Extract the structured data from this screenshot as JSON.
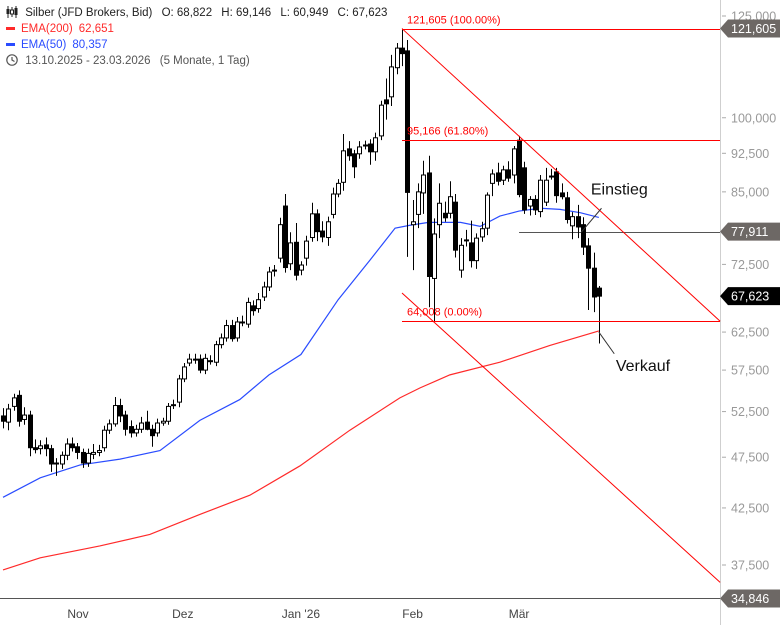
{
  "header": {
    "instrument": "Silber (JFD Brokers, Bid)",
    "open": "O: 68,822",
    "high": "H: 69,146",
    "low": "L: 60,949",
    "close": "C: 67,623",
    "ema200_label": "EMA(200)",
    "ema200_value": "62,651",
    "ema50_label": "EMA(50)",
    "ema50_value": "80,357",
    "range": "13.10.2025 - 23.03.2026",
    "period": "(5 Monate, 1 Tag)",
    "icons": [
      "candlestick-icon",
      "clock-icon"
    ]
  },
  "colors": {
    "up_fill": "#ffffff",
    "candle": "#000000",
    "ema200": "#ff2a2a",
    "ema50": "#2a4cff",
    "annotation": "#ff0000",
    "guide": "#555555",
    "tag": "#6d6865",
    "tag_current": "#000000",
    "axis_text": "#999999"
  },
  "chart_data": {
    "type": "candlestick",
    "title": "Silber (JFD Brokers, Bid)",
    "yscale": "log",
    "ylim": [
      34.2,
      127
    ],
    "y_ticks": [
      {
        "v": 125,
        "label": "125,000"
      },
      {
        "v": 100,
        "label": "100,000"
      },
      {
        "v": 92.5,
        "label": "92,500"
      },
      {
        "v": 85,
        "label": "85,000"
      },
      {
        "v": 72.5,
        "label": "72,500"
      },
      {
        "v": 62.5,
        "label": "62,500"
      },
      {
        "v": 57.5,
        "label": "57,500"
      },
      {
        "v": 52.5,
        "label": "52,500"
      },
      {
        "v": 47.5,
        "label": "47,500"
      },
      {
        "v": 42.5,
        "label": "42,500"
      },
      {
        "v": 37.5,
        "label": "37,500"
      }
    ],
    "x_ticks": [
      {
        "i": 14.1,
        "label": "Nov"
      },
      {
        "i": 33.8,
        "label": "Dez"
      },
      {
        "i": 56,
        "label": "Jan '26"
      },
      {
        "i": 77,
        "label": "Feb"
      },
      {
        "i": 97,
        "label": "Mär"
      }
    ],
    "price_tags": [
      {
        "v": 121.605,
        "label": "121,605",
        "current": false
      },
      {
        "v": 77.911,
        "label": "77,911",
        "current": false
      },
      {
        "v": 67.623,
        "label": "67,623",
        "current": true
      },
      {
        "v": 34.846,
        "label": "34,846",
        "current": false
      }
    ],
    "ohlc": [
      [
        52.0,
        52.9,
        50.6,
        51.4
      ],
      [
        51.3,
        53.4,
        50.4,
        52.8
      ],
      [
        53.1,
        54.6,
        52.6,
        54.1
      ],
      [
        54.4,
        55.0,
        50.8,
        51.4
      ],
      [
        51.6,
        53.0,
        51.0,
        52.1
      ],
      [
        52.1,
        52.6,
        47.6,
        48.5
      ],
      [
        48.5,
        49.4,
        47.9,
        48.3
      ],
      [
        48.4,
        49.3,
        47.8,
        48.7
      ],
      [
        48.8,
        49.6,
        47.6,
        48.4
      ],
      [
        48.4,
        48.8,
        46.0,
        46.8
      ],
      [
        46.8,
        47.4,
        45.6,
        46.9
      ],
      [
        46.8,
        48.1,
        46.3,
        47.7
      ],
      [
        47.7,
        49.5,
        47.2,
        48.9
      ],
      [
        48.9,
        49.6,
        48.1,
        48.5
      ],
      [
        48.6,
        49.0,
        47.3,
        48.0
      ],
      [
        48.0,
        48.4,
        46.4,
        46.9
      ],
      [
        46.9,
        48.4,
        46.5,
        47.9
      ],
      [
        47.8,
        48.9,
        47.3,
        48.0
      ],
      [
        48.0,
        48.8,
        47.6,
        48.2
      ],
      [
        48.5,
        50.9,
        48.1,
        50.4
      ],
      [
        50.4,
        51.6,
        50.0,
        51.1
      ],
      [
        51.1,
        54.2,
        50.8,
        53.2
      ],
      [
        53.2,
        54.0,
        51.3,
        52.0
      ],
      [
        52.1,
        52.6,
        49.8,
        50.5
      ],
      [
        50.8,
        51.5,
        49.6,
        50.1
      ],
      [
        50.1,
        51.0,
        49.7,
        50.5
      ],
      [
        50.5,
        51.9,
        50.1,
        51.2
      ],
      [
        51.3,
        52.6,
        50.4,
        50.5
      ],
      [
        50.5,
        51.0,
        48.6,
        49.8
      ],
      [
        50.1,
        51.7,
        49.7,
        51.2
      ],
      [
        51.2,
        51.8,
        50.9,
        51.4
      ],
      [
        51.4,
        53.5,
        51.0,
        53.1
      ],
      [
        53.3,
        53.9,
        52.8,
        53.3
      ],
      [
        53.6,
        56.9,
        53.0,
        56.4
      ],
      [
        56.4,
        58.4,
        56.0,
        57.9
      ],
      [
        58.4,
        59.6,
        58.0,
        58.9
      ],
      [
        58.9,
        59.6,
        58.3,
        58.9
      ],
      [
        58.9,
        59.5,
        57.1,
        57.5
      ],
      [
        57.5,
        59.6,
        57.0,
        59.0
      ],
      [
        58.7,
        59.4,
        58.2,
        58.7
      ],
      [
        58.5,
        61.3,
        58.0,
        60.8
      ],
      [
        60.8,
        62.3,
        60.3,
        61.7
      ],
      [
        61.7,
        64.2,
        61.2,
        63.4
      ],
      [
        63.4,
        64.2,
        61.2,
        61.6
      ],
      [
        61.7,
        64.6,
        61.2,
        63.9
      ],
      [
        63.9,
        64.8,
        63.3,
        63.9
      ],
      [
        63.6,
        67.4,
        63.1,
        66.7
      ],
      [
        66.2,
        67.0,
        64.8,
        65.5
      ],
      [
        65.8,
        68.1,
        65.2,
        67.1
      ],
      [
        67.5,
        69.8,
        66.9,
        69.0
      ],
      [
        69.0,
        72.1,
        68.4,
        71.3
      ],
      [
        71.6,
        72.4,
        70.6,
        71.6
      ],
      [
        73.5,
        80.3,
        72.8,
        79.1
      ],
      [
        82.4,
        84.6,
        71.2,
        72.0
      ],
      [
        72.6,
        77.8,
        71.6,
        76.0
      ],
      [
        76.1,
        79.4,
        70.0,
        70.8
      ],
      [
        71.6,
        73.0,
        70.8,
        72.4
      ],
      [
        73.5,
        77.2,
        72.3,
        76.3
      ],
      [
        76.9,
        83.0,
        76.2,
        81.0
      ],
      [
        81.0,
        81.8,
        76.3,
        77.9
      ],
      [
        78.0,
        79.7,
        76.1,
        77.0
      ],
      [
        76.9,
        80.5,
        75.5,
        79.6
      ],
      [
        80.9,
        85.8,
        80.2,
        84.6
      ],
      [
        84.6,
        87.4,
        84.0,
        86.6
      ],
      [
        86.8,
        96.5,
        85.2,
        93.0
      ],
      [
        93.4,
        95.0,
        91.0,
        92.0
      ],
      [
        92.4,
        93.2,
        87.6,
        89.8
      ],
      [
        92.4,
        95.0,
        91.4,
        93.8
      ],
      [
        94.2,
        95.1,
        93.3,
        94.2
      ],
      [
        94.4,
        95.4,
        90.2,
        92.8
      ],
      [
        92.8,
        96.8,
        91.0,
        95.7
      ],
      [
        96.1,
        103.8,
        95.2,
        102.8
      ],
      [
        104.0,
        109.0,
        99.6,
        103.1
      ],
      [
        104.7,
        114.8,
        102.6,
        111.8
      ],
      [
        111.6,
        117.8,
        110.0,
        116.5
      ],
      [
        116.5,
        121.605,
        112.0,
        115.1
      ],
      [
        115.8,
        118.6,
        73.7,
        84.9
      ],
      [
        79.1,
        83.5,
        71.6,
        79.6
      ],
      [
        80.9,
        86.6,
        78.5,
        85.0
      ],
      [
        84.8,
        91.0,
        81.0,
        88.2
      ],
      [
        88.6,
        92.0,
        66.0,
        70.6
      ],
      [
        70.3,
        80.2,
        64.0,
        77.5
      ],
      [
        79.1,
        86.6,
        76.8,
        82.9
      ],
      [
        81.1,
        83.2,
        79.6,
        80.3
      ],
      [
        81.1,
        87.0,
        80.2,
        84.1
      ],
      [
        83.1,
        84.6,
        73.6,
        74.8
      ],
      [
        71.6,
        76.8,
        70.4,
        75.6
      ],
      [
        76.5,
        78.2,
        75.4,
        76.5
      ],
      [
        76.0,
        79.8,
        72.0,
        73.1
      ],
      [
        73.1,
        77.6,
        71.8,
        76.8
      ],
      [
        77.0,
        79.6,
        76.2,
        78.4
      ],
      [
        78.5,
        84.9,
        77.3,
        84.4
      ],
      [
        86.6,
        89.3,
        84.2,
        88.4
      ],
      [
        88.6,
        90.6,
        86.2,
        87.0
      ],
      [
        87.2,
        90.0,
        86.3,
        89.2
      ],
      [
        89.2,
        90.9,
        86.9,
        87.6
      ],
      [
        88.2,
        94.0,
        86.6,
        93.4
      ],
      [
        95.2,
        96.1,
        84.0,
        84.5
      ],
      [
        89.6,
        90.8,
        81.0,
        81.7
      ],
      [
        82.4,
        84.2,
        80.7,
        83.6
      ],
      [
        83.6,
        84.4,
        80.8,
        81.7
      ],
      [
        81.4,
        88.2,
        80.4,
        87.2
      ],
      [
        83.1,
        89.6,
        82.4,
        87.2
      ],
      [
        88.0,
        89.4,
        87.3,
        88.0
      ],
      [
        88.8,
        89.6,
        83.0,
        84.3
      ],
      [
        84.8,
        86.6,
        83.6,
        84.1
      ],
      [
        83.9,
        85.0,
        79.3,
        80.0
      ],
      [
        78.9,
        81.3,
        76.6,
        80.5
      ],
      [
        80.5,
        82.6,
        76.8,
        78.7
      ],
      [
        79.1,
        80.4,
        74.0,
        75.3
      ],
      [
        75.5,
        76.8,
        65.6,
        71.9
      ],
      [
        71.9,
        74.4,
        65.3,
        67.5
      ],
      [
        68.822,
        69.146,
        60.949,
        67.623
      ]
    ],
    "ema50": [
      [
        0,
        43.5
      ],
      [
        7,
        45.4
      ],
      [
        14.5,
        46.7
      ],
      [
        22,
        47.3
      ],
      [
        29.5,
        48.2
      ],
      [
        37,
        51.5
      ],
      [
        44.5,
        53.9
      ],
      [
        50,
        56.9
      ],
      [
        56,
        59.5
      ],
      [
        63,
        67.1
      ],
      [
        69,
        73.2
      ],
      [
        73.7,
        78.5
      ],
      [
        76.5,
        79.0
      ],
      [
        80,
        79.5
      ],
      [
        86,
        79.5
      ],
      [
        89.7,
        78.8
      ],
      [
        93.4,
        80.6
      ],
      [
        97,
        81.5
      ],
      [
        101,
        82.0
      ],
      [
        104.7,
        81.8
      ],
      [
        108.5,
        81.2
      ],
      [
        112,
        80.357
      ]
    ],
    "ema200": [
      [
        0,
        37.1
      ],
      [
        7,
        38.1
      ],
      [
        18.2,
        39.1
      ],
      [
        27.6,
        40.1
      ],
      [
        37,
        41.9
      ],
      [
        46.4,
        43.7
      ],
      [
        55.8,
        46.6
      ],
      [
        65.2,
        50.4
      ],
      [
        74.6,
        54.1
      ],
      [
        78.4,
        55.3
      ],
      [
        84,
        56.9
      ],
      [
        93.4,
        58.5
      ],
      [
        102.8,
        60.7
      ],
      [
        112,
        62.651
      ]
    ],
    "fib_levels": [
      {
        "v": 121.605,
        "label": "121,605 (100.00%)",
        "from": 75
      },
      {
        "v": 95.166,
        "label": "95,166 (61.80%)",
        "from": 75
      },
      {
        "v": 64.008,
        "label": "64,008 (0.00%)",
        "from": 75
      }
    ],
    "trendlines": [
      {
        "name": "upper-trendline",
        "p1": [
          75,
          121.605
        ],
        "p2": [
          134.8,
          64.008
        ]
      },
      {
        "name": "lower-channel-line",
        "p1": [
          75,
          68.1
        ],
        "p2": [
          134.8,
          36.1
        ]
      }
    ],
    "horizontal_lines": [
      {
        "name": "entry-level-line",
        "v": 77.911,
        "from": 97
      },
      {
        "name": "bottom-level-line",
        "v": 34.846,
        "from": -1
      }
    ],
    "annotations": [
      {
        "text": "Einstieg",
        "i": 110.5,
        "v": 84.5,
        "arrow_to": [
          108.7,
          77.8
        ],
        "arrow_from": [
          112.5,
          82.0
        ]
      },
      {
        "text": "Verkauf",
        "i": 115.2,
        "v": 57.4,
        "arrow_to": [
          112,
          62.5
        ],
        "arrow_from": [
          114.9,
          59.6
        ]
      }
    ]
  }
}
